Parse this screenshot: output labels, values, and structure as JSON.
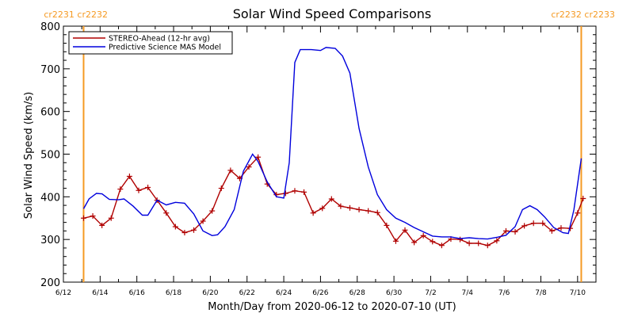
{
  "chart_data": {
    "type": "line",
    "title": "Solar Wind Speed Comparisons",
    "xlabel": "Month/Day from 2020-06-12 to 2020-07-10 (UT)",
    "ylabel": "Solar Wind Speed (km/s)",
    "ylim": [
      200,
      800
    ],
    "xlim_days": [
      0,
      29
    ],
    "yticks": [
      "200",
      "300",
      "400",
      "500",
      "600",
      "700",
      "800"
    ],
    "xticks": [
      {
        "label": "6/12",
        "day": 0
      },
      {
        "label": "6/14",
        "day": 2
      },
      {
        "label": "6/16",
        "day": 4
      },
      {
        "label": "6/18",
        "day": 6
      },
      {
        "label": "6/20",
        "day": 8
      },
      {
        "label": "6/22",
        "day": 10
      },
      {
        "label": "6/24",
        "day": 12
      },
      {
        "label": "6/26",
        "day": 14
      },
      {
        "label": "6/28",
        "day": 16
      },
      {
        "label": "6/30",
        "day": 18
      },
      {
        "label": "7/2",
        "day": 20
      },
      {
        "label": "7/4",
        "day": 22
      },
      {
        "label": "7/6",
        "day": 24
      },
      {
        "label": "7/8",
        "day": 26
      },
      {
        "label": "7/10",
        "day": 28
      }
    ],
    "carrington_markers": [
      {
        "day": 1.1,
        "label": "cr2231 cr2232",
        "label_side": "left"
      },
      {
        "day": 28.2,
        "label": "cr2232 cr2233",
        "label_side": "right"
      }
    ],
    "legend_position": "top-left",
    "series": [
      {
        "name": "STEREO-Ahead (12-hr avg)",
        "color": "#b00000",
        "marker": "plus",
        "points": [
          [
            1.1,
            350
          ],
          [
            1.6,
            355
          ],
          [
            2.1,
            333
          ],
          [
            2.6,
            350
          ],
          [
            3.1,
            418
          ],
          [
            3.6,
            448
          ],
          [
            4.1,
            415
          ],
          [
            4.6,
            422
          ],
          [
            5.1,
            392
          ],
          [
            5.6,
            362
          ],
          [
            6.1,
            330
          ],
          [
            6.6,
            316
          ],
          [
            7.1,
            322
          ],
          [
            7.6,
            343
          ],
          [
            8.1,
            367
          ],
          [
            8.6,
            420
          ],
          [
            9.1,
            462
          ],
          [
            9.6,
            443
          ],
          [
            10.1,
            470
          ],
          [
            10.6,
            493
          ],
          [
            11.1,
            430
          ],
          [
            11.6,
            405
          ],
          [
            12.1,
            408
          ],
          [
            12.6,
            414
          ],
          [
            13.1,
            411
          ],
          [
            13.6,
            362
          ],
          [
            14.1,
            373
          ],
          [
            14.6,
            395
          ],
          [
            15.1,
            378
          ],
          [
            15.6,
            374
          ],
          [
            16.1,
            370
          ],
          [
            16.6,
            367
          ],
          [
            17.1,
            363
          ],
          [
            17.6,
            333
          ],
          [
            18.1,
            296
          ],
          [
            18.6,
            322
          ],
          [
            19.1,
            293
          ],
          [
            19.6,
            309
          ],
          [
            20.1,
            295
          ],
          [
            20.6,
            286
          ],
          [
            21.1,
            301
          ],
          [
            21.6,
            300
          ],
          [
            22.1,
            291
          ],
          [
            22.6,
            291
          ],
          [
            23.1,
            286
          ],
          [
            23.6,
            297
          ],
          [
            24.1,
            320
          ],
          [
            24.6,
            318
          ],
          [
            25.1,
            332
          ],
          [
            25.6,
            338
          ],
          [
            26.1,
            338
          ],
          [
            26.6,
            320
          ],
          [
            27.1,
            327
          ],
          [
            27.6,
            326
          ],
          [
            28.0,
            362
          ],
          [
            28.3,
            396
          ]
        ]
      },
      {
        "name": "Predictive Science MAS Model",
        "color": "#0000dd",
        "marker": "none",
        "points": [
          [
            1.1,
            372
          ],
          [
            1.4,
            395
          ],
          [
            1.8,
            408
          ],
          [
            2.1,
            407
          ],
          [
            2.5,
            394
          ],
          [
            3.0,
            393
          ],
          [
            3.3,
            395
          ],
          [
            3.8,
            378
          ],
          [
            4.3,
            357
          ],
          [
            4.6,
            357
          ],
          [
            5.1,
            392
          ],
          [
            5.6,
            381
          ],
          [
            6.1,
            387
          ],
          [
            6.6,
            385
          ],
          [
            7.1,
            360
          ],
          [
            7.6,
            320
          ],
          [
            8.1,
            309
          ],
          [
            8.4,
            311
          ],
          [
            8.8,
            330
          ],
          [
            9.3,
            370
          ],
          [
            9.8,
            460
          ],
          [
            10.3,
            500
          ],
          [
            10.6,
            483
          ],
          [
            11.1,
            435
          ],
          [
            11.6,
            400
          ],
          [
            12.0,
            397
          ],
          [
            12.3,
            480
          ],
          [
            12.6,
            715
          ],
          [
            12.9,
            745
          ],
          [
            13.5,
            745
          ],
          [
            14.0,
            743
          ],
          [
            14.3,
            750
          ],
          [
            14.8,
            748
          ],
          [
            15.2,
            730
          ],
          [
            15.6,
            690
          ],
          [
            16.1,
            560
          ],
          [
            16.6,
            470
          ],
          [
            17.1,
            405
          ],
          [
            17.6,
            370
          ],
          [
            18.1,
            350
          ],
          [
            18.6,
            340
          ],
          [
            19.1,
            328
          ],
          [
            19.6,
            318
          ],
          [
            20.1,
            308
          ],
          [
            20.6,
            306
          ],
          [
            21.1,
            306
          ],
          [
            21.6,
            302
          ],
          [
            22.1,
            304
          ],
          [
            22.6,
            302
          ],
          [
            23.1,
            301
          ],
          [
            23.6,
            305
          ],
          [
            24.1,
            310
          ],
          [
            24.6,
            330
          ],
          [
            25.0,
            370
          ],
          [
            25.4,
            379
          ],
          [
            25.8,
            370
          ],
          [
            26.2,
            353
          ],
          [
            26.7,
            328
          ],
          [
            27.2,
            316
          ],
          [
            27.5,
            314
          ],
          [
            27.8,
            370
          ],
          [
            28.2,
            490
          ]
        ]
      }
    ]
  }
}
